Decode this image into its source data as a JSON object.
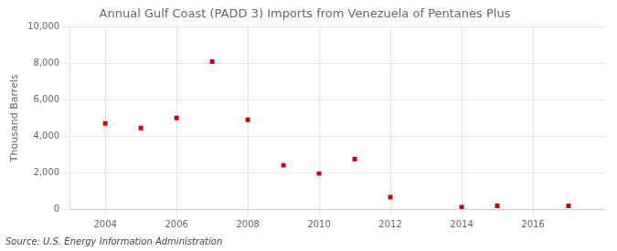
{
  "chart_data": {
    "type": "scatter",
    "title": "Annual Gulf Coast (PADD 3) Imports from Venezuela of Pentanes Plus",
    "ylabel": "Thousand Barrels",
    "annotations": [
      "Source: U.S. Energy Information Administration"
    ],
    "x": [
      2004,
      2005,
      2006,
      2007,
      2008,
      2009,
      2010,
      2011,
      2012,
      2014,
      2015,
      2017
    ],
    "values": [
      4700,
      4450,
      5000,
      8100,
      4900,
      2400,
      1950,
      2750,
      650,
      100,
      175,
      175
    ],
    "color": "#cc0000",
    "marker": "square",
    "xlim": [
      2003.0,
      2018.0
    ],
    "xticks": [
      2004,
      2006,
      2008,
      2010,
      2012,
      2014,
      2016
    ],
    "ylim": [
      0,
      10000
    ],
    "yticks": [
      0,
      {
        "value": 2000,
        "label": "2,000"
      },
      {
        "value": 4000,
        "label": "4,000"
      },
      {
        "value": 6000,
        "label": "6,000"
      },
      {
        "value": 8000,
        "label": "8,000"
      },
      {
        "value": 10000,
        "label": "10,000"
      }
    ],
    "grid": true
  }
}
